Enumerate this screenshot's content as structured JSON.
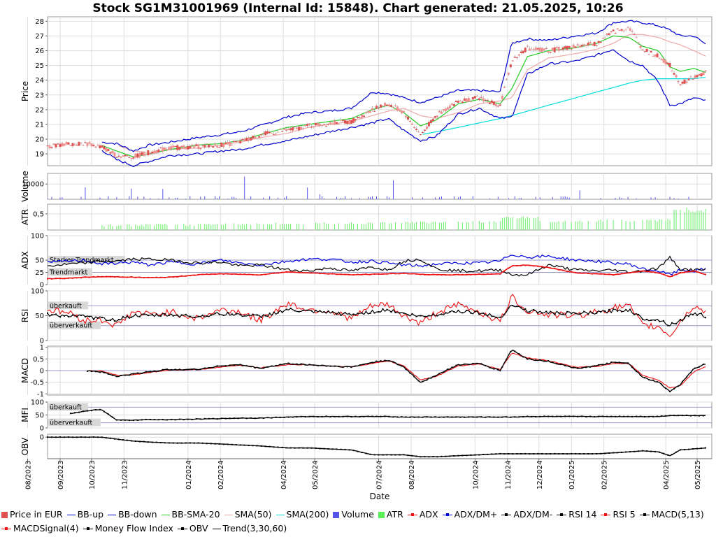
{
  "title": "Stock SG1M31001969 (Internal Id: 15848). Chart generated: 21.05.2025, 10:26",
  "xlabel": "Date",
  "date_ticks": [
    "08/2023",
    "09/2023",
    "10/2023",
    "11/2023",
    "01/2024",
    "02/2024",
    "04/2024",
    "05/2024",
    "07/2024",
    "08/2024",
    "10/2024",
    "11/2024",
    "12/2024",
    "01/2025",
    "02/2025",
    "04/2025",
    "05/2025"
  ],
  "colors": {
    "candle": "#e05050",
    "bb": "#0000cc",
    "bb_sma": "#22cc22",
    "sma50": "#f0a8a8",
    "sma200": "#00dddd",
    "volume": "#5555ee",
    "atr": "#66ee66",
    "adx": "#ee1111",
    "dmplus": "#0000dd",
    "dmminus": "#000000",
    "rsi14": "#000000",
    "rsi5": "#ee1111",
    "macd": "#000000",
    "signal": "#ee1111",
    "mfi": "#000000",
    "obv": "#000000",
    "refline": "#9999cc",
    "grid": "#dddddd"
  },
  "panels": {
    "price": {
      "ylabel": "Price",
      "ticks": [
        "19",
        "20",
        "21",
        "22",
        "23",
        "24",
        "25",
        "26",
        "27",
        "28"
      ]
    },
    "volume": {
      "ylabel": "Volume",
      "ticks": [
        "10000"
      ]
    },
    "atr": {
      "ylabel": "ATR",
      "ticks": [
        "0,5"
      ]
    },
    "adx": {
      "ylabel": "ADX",
      "ticks": [
        "0",
        "25",
        "50",
        "100"
      ],
      "labels": [
        "Starker Trendmarkt",
        "Trendmarkt"
      ]
    },
    "rsi": {
      "ylabel": "RSI",
      "ticks": [
        "0",
        "50",
        "100"
      ],
      "labels": [
        "überkauft",
        "überverkauft"
      ]
    },
    "macd": {
      "ylabel": "MACD",
      "ticks": [
        "1",
        "0,5",
        "0",
        "-0,5",
        "-1"
      ]
    },
    "mfi": {
      "ylabel": "MFI",
      "ticks": [
        "0",
        "50",
        "100"
      ],
      "labels": [
        "überkauft",
        "überverkauft"
      ]
    },
    "obv": {
      "ylabel": "OBV",
      "ticks": [
        "0"
      ]
    }
  },
  "legend": [
    {
      "label": "Price in EUR",
      "kind": "box",
      "color": "#e05050"
    },
    {
      "label": "BB-up",
      "kind": "line",
      "color": "#0000cc"
    },
    {
      "label": "BB-down",
      "kind": "line",
      "color": "#0000cc"
    },
    {
      "label": "BB-SMA-20",
      "kind": "line",
      "color": "#22cc22"
    },
    {
      "label": "SMA(50)",
      "kind": "line",
      "color": "#f0a8a8"
    },
    {
      "label": "SMA(200)",
      "kind": "line",
      "color": "#00dddd"
    },
    {
      "label": "Volume",
      "kind": "box",
      "color": "#5555ee"
    },
    {
      "label": "ATR",
      "kind": "box",
      "color": "#55ee55"
    },
    {
      "label": "ADX",
      "kind": "marker",
      "color": "#ee1111"
    },
    {
      "label": "ADX/DM+",
      "kind": "marker",
      "color": "#0000dd"
    },
    {
      "label": "ADX/DM-",
      "kind": "marker",
      "color": "#000000"
    },
    {
      "label": "RSI 14",
      "kind": "marker",
      "color": "#000000"
    },
    {
      "label": "RSI 5",
      "kind": "marker",
      "color": "#ee1111"
    },
    {
      "label": "MACD(5,13)",
      "kind": "marker",
      "color": "#000000"
    },
    {
      "label": "MACDSignal(4)",
      "kind": "marker",
      "color": "#ee1111"
    },
    {
      "label": "Money Flow Index",
      "kind": "marker",
      "color": "#000000"
    },
    {
      "label": "OBV",
      "kind": "marker",
      "color": "#000000"
    },
    {
      "label": "Trend(3,30,60)",
      "kind": "line",
      "color": "#000000"
    }
  ],
  "chart_data": {
    "type": "line",
    "title": "Stock SG1M31001969 (Internal Id: 15848). Chart generated: 21.05.2025, 10:26",
    "xlabel": "Date",
    "x_range": [
      "2023-08-20",
      "2025-05-15"
    ],
    "grid": true,
    "legend_position": "bottom",
    "price_ylim": [
      18.2,
      28.3
    ],
    "x": [
      "2023-08-20",
      "2023-09-10",
      "2023-09-25",
      "2023-10-10",
      "2023-10-25",
      "2023-11-10",
      "2023-11-25",
      "2023-12-15",
      "2024-01-10",
      "2024-02-01",
      "2024-02-20",
      "2024-03-10",
      "2024-04-05",
      "2024-04-25",
      "2024-05-15",
      "2024-06-05",
      "2024-06-25",
      "2024-07-10",
      "2024-07-25",
      "2024-08-10",
      "2024-08-25",
      "2024-09-15",
      "2024-10-05",
      "2024-10-25",
      "2024-11-05",
      "2024-11-20",
      "2024-12-10",
      "2025-01-05",
      "2025-01-25",
      "2025-02-10",
      "2025-02-25",
      "2025-03-10",
      "2025-03-25",
      "2025-04-05",
      "2025-04-15",
      "2025-04-28",
      "2025-05-10"
    ],
    "series": [
      {
        "name": "Price in EUR",
        "values": [
          19.5,
          19.7,
          19.7,
          19.5,
          18.9,
          18.8,
          19.1,
          19.4,
          19.5,
          19.6,
          19.8,
          20.3,
          20.6,
          20.9,
          21.1,
          21.2,
          22.0,
          22.4,
          21.8,
          20.3,
          21.6,
          22.6,
          22.8,
          22.3,
          25.3,
          26.2,
          26.0,
          26.3,
          26.5,
          27.3,
          27.6,
          26.1,
          25.6,
          25.0,
          23.8,
          24.2,
          24.5
        ]
      },
      {
        "name": "BB-up",
        "values": [
          null,
          null,
          null,
          19.8,
          19.7,
          19.2,
          19.6,
          19.8,
          20.1,
          20.3,
          20.5,
          20.9,
          21.5,
          21.8,
          21.9,
          22.1,
          23.2,
          23.1,
          22.8,
          22.5,
          22.8,
          23.3,
          23.3,
          23.2,
          26.5,
          26.8,
          26.7,
          27.0,
          27.2,
          27.9,
          28.0,
          27.9,
          27.7,
          27.4,
          27.0,
          27.0,
          26.4
        ]
      },
      {
        "name": "BB-down",
        "values": [
          null,
          null,
          null,
          19.3,
          18.6,
          18.2,
          18.5,
          18.9,
          19.0,
          19.2,
          19.3,
          19.6,
          19.9,
          20.2,
          20.5,
          20.8,
          21.1,
          21.4,
          20.6,
          19.9,
          20.2,
          21.7,
          22.1,
          21.4,
          21.5,
          24.4,
          25.1,
          25.3,
          25.7,
          26.1,
          25.3,
          25.0,
          23.9,
          22.3,
          22.4,
          22.8,
          22.6
        ]
      },
      {
        "name": "BB-SMA-20",
        "values": [
          null,
          null,
          null,
          19.6,
          19.2,
          18.8,
          19.0,
          19.3,
          19.6,
          19.7,
          19.9,
          20.3,
          20.8,
          21.0,
          21.2,
          21.4,
          22.0,
          22.3,
          21.8,
          20.9,
          21.3,
          22.4,
          22.7,
          22.4,
          23.4,
          25.6,
          26.0,
          26.2,
          26.5,
          27.0,
          26.9,
          26.3,
          26.0,
          24.9,
          24.6,
          24.8,
          24.5
        ]
      },
      {
        "name": "SMA(50)",
        "values": [
          null,
          null,
          null,
          null,
          19.6,
          19.2,
          19.1,
          19.3,
          19.4,
          19.6,
          19.8,
          20.1,
          20.4,
          20.8,
          21.0,
          21.2,
          21.6,
          21.9,
          22.1,
          21.6,
          21.4,
          21.8,
          22.4,
          22.6,
          22.8,
          24.7,
          25.5,
          25.8,
          26.1,
          26.5,
          27.1,
          27.1,
          26.9,
          26.6,
          26.4,
          26.0,
          25.6
        ]
      },
      {
        "name": "SMA(200)",
        "values": [
          null,
          null,
          null,
          null,
          null,
          null,
          null,
          null,
          null,
          null,
          null,
          null,
          null,
          null,
          null,
          null,
          null,
          null,
          null,
          20.3,
          20.5,
          20.8,
          21.1,
          21.4,
          21.6,
          21.9,
          22.3,
          22.8,
          23.2,
          23.5,
          23.8,
          24.0,
          24.1,
          24.1,
          24.1,
          24.1,
          24.2
        ]
      }
    ],
    "indicators": {
      "volume_max": 15000,
      "adx": [
        12,
        13,
        15,
        16,
        16,
        15,
        14,
        15,
        20,
        22,
        21,
        20,
        26,
        24,
        22,
        20,
        21,
        22,
        23,
        21,
        20,
        20,
        21,
        22,
        38,
        40,
        35,
        24,
        22,
        20,
        24,
        28,
        24,
        16,
        24,
        28,
        20
      ],
      "dm_plus": [
        45,
        48,
        50,
        42,
        44,
        46,
        40,
        46,
        42,
        50,
        44,
        40,
        48,
        52,
        52,
        46,
        48,
        44,
        40,
        38,
        42,
        44,
        44,
        48,
        62,
        56,
        58,
        50,
        48,
        44,
        42,
        32,
        28,
        20,
        30,
        28,
        32
      ],
      "dm_minus": [
        38,
        42,
        44,
        48,
        48,
        52,
        52,
        50,
        44,
        46,
        38,
        40,
        30,
        28,
        34,
        28,
        36,
        30,
        48,
        52,
        32,
        28,
        28,
        30,
        20,
        20,
        40,
        30,
        28,
        30,
        26,
        28,
        34,
        55,
        32,
        30,
        30
      ],
      "rsi14": [
        52,
        50,
        48,
        44,
        42,
        50,
        50,
        52,
        48,
        54,
        52,
        48,
        62,
        58,
        56,
        52,
        58,
        62,
        54,
        48,
        52,
        60,
        56,
        46,
        72,
        60,
        56,
        54,
        56,
        60,
        62,
        44,
        42,
        32,
        40,
        56,
        48
      ],
      "rsi5": [
        62,
        56,
        40,
        42,
        30,
        58,
        52,
        58,
        44,
        62,
        58,
        40,
        75,
        62,
        60,
        44,
        70,
        72,
        50,
        34,
        56,
        72,
        58,
        38,
        88,
        60,
        52,
        50,
        58,
        66,
        70,
        30,
        28,
        10,
        38,
        70,
        56
      ],
      "macd": [
        null,
        null,
        0.0,
        -0.05,
        -0.25,
        -0.15,
        -0.05,
        0.05,
        0.05,
        0.2,
        0.25,
        0.1,
        0.3,
        0.25,
        0.2,
        0.15,
        0.35,
        0.45,
        0.15,
        -0.5,
        -0.2,
        0.25,
        0.3,
        0.0,
        0.9,
        0.5,
        0.4,
        0.1,
        0.2,
        0.35,
        0.3,
        -0.3,
        -0.5,
        -0.9,
        -0.6,
        0.1,
        0.3
      ],
      "macd_signal": [
        null,
        null,
        0.0,
        -0.02,
        -0.2,
        -0.18,
        -0.08,
        0.02,
        0.04,
        0.15,
        0.22,
        0.12,
        0.25,
        0.25,
        0.2,
        0.16,
        0.3,
        0.42,
        0.2,
        -0.4,
        -0.25,
        0.2,
        0.28,
        0.05,
        0.75,
        0.55,
        0.42,
        0.15,
        0.18,
        0.3,
        0.3,
        -0.2,
        -0.4,
        -0.75,
        -0.65,
        -0.05,
        0.2
      ],
      "mfi": [
        null,
        55,
        65,
        72,
        30,
        30,
        32,
        32,
        34,
        36,
        38,
        38,
        42,
        44,
        44,
        44,
        44,
        44,
        42,
        42,
        42,
        42,
        42,
        42,
        42,
        44,
        44,
        44,
        44,
        44,
        44,
        44,
        44,
        48,
        48,
        48,
        48
      ],
      "obv": [
        0,
        0,
        0,
        0,
        -0.1,
        -0.2,
        -0.25,
        -0.3,
        -0.3,
        -0.35,
        -0.4,
        -0.45,
        -0.55,
        -0.55,
        -0.6,
        -0.65,
        -0.9,
        -0.9,
        -0.9,
        -1.0,
        -1.0,
        -0.95,
        -0.9,
        -0.85,
        -0.85,
        -0.85,
        -0.85,
        -0.85,
        -0.85,
        -0.8,
        -0.75,
        -0.7,
        -0.75,
        -0.95,
        -0.65,
        -0.6,
        -0.55
      ]
    }
  }
}
